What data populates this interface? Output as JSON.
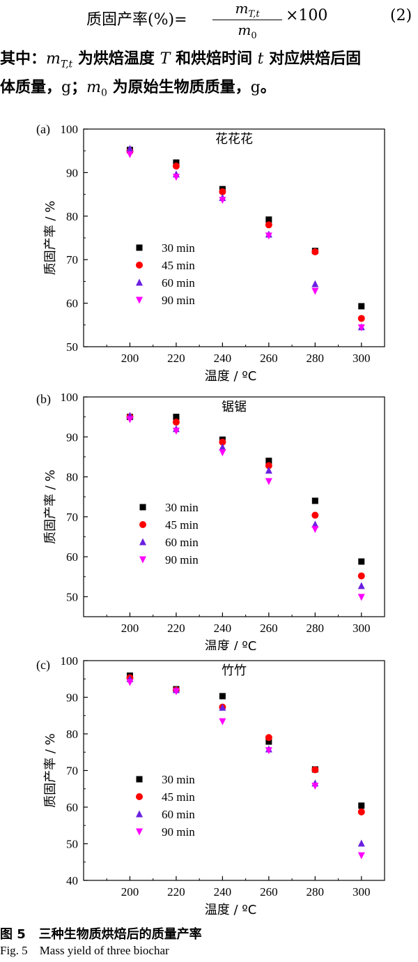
{
  "equation": {
    "lhs": "质固产率(%)=",
    "numerator": "m_T,t",
    "denominator": "m_0",
    "rhs": "×100",
    "number": "(2)"
  },
  "paragraph": {
    "line1_pre": "其中：",
    "line1_var": "m",
    "line1_sub": "T,t",
    "line1_mid1": "为烘焙温度",
    "line1_T": "T",
    "line1_mid2": "和烘焙时间",
    "line1_t": "t",
    "line1_post": "对应烘焙后固",
    "line2_pre": "体质量，",
    "line2_g1": "g",
    "line2_semi": "；",
    "line2_var": "m",
    "line2_sub": "0",
    "line2_mid": "为原始生物质质量，",
    "line2_g2": "g",
    "line2_end": "。"
  },
  "legend_labels": [
    "30 min",
    "45 min",
    "60 min",
    "90 min"
  ],
  "series_styles": [
    {
      "marker": "square",
      "color": "#000000"
    },
    {
      "marker": "circle",
      "color": "#ff0000"
    },
    {
      "marker": "triangle-up",
      "color": "#6b1fe0"
    },
    {
      "marker": "triangle-down",
      "color": "#ff00ff"
    }
  ],
  "chart_data": [
    {
      "type": "scatter",
      "panel_label": "(a)",
      "title": "花花花",
      "xlabel": "温度 / ºC",
      "ylabel": "质固产率 / %",
      "x": [
        200,
        220,
        240,
        260,
        280,
        300
      ],
      "xlim": [
        180,
        310
      ],
      "ylim": [
        50,
        100
      ],
      "xticks": [
        200,
        220,
        240,
        260,
        280,
        300
      ],
      "yticks": [
        50,
        60,
        70,
        80,
        90,
        100
      ],
      "series": [
        {
          "name": "30 min",
          "values": [
            95.2,
            92.3,
            86.2,
            79.2,
            72.0,
            59.3
          ]
        },
        {
          "name": "45 min",
          "values": [
            94.9,
            91.5,
            85.6,
            78.0,
            71.8,
            56.5
          ]
        },
        {
          "name": "60 min",
          "values": [
            95.5,
            89.6,
            84.2,
            75.8,
            64.4,
            54.5
          ]
        },
        {
          "name": "90 min",
          "values": [
            94.2,
            89.0,
            83.7,
            75.5,
            62.8,
            54.4
          ]
        }
      ]
    },
    {
      "type": "scatter",
      "panel_label": "(b)",
      "title": "锯锯",
      "xlabel": "温度 / ºC",
      "ylabel": "质固产率 / %",
      "x": [
        200,
        220,
        240,
        260,
        280,
        300
      ],
      "xlim": [
        180,
        310
      ],
      "ylim": [
        45,
        100
      ],
      "xticks": [
        200,
        220,
        240,
        260,
        280,
        300
      ],
      "yticks": [
        50,
        60,
        70,
        80,
        90,
        100
      ],
      "series": [
        {
          "name": "30 min",
          "values": [
            95.0,
            95.0,
            89.3,
            84.0,
            74.0,
            58.8
          ]
        },
        {
          "name": "45 min",
          "values": [
            95.0,
            93.7,
            88.7,
            82.8,
            70.4,
            55.2
          ]
        },
        {
          "name": "60 min",
          "values": [
            95.3,
            92.0,
            87.4,
            81.6,
            68.1,
            52.7
          ]
        },
        {
          "name": "90 min",
          "values": [
            94.4,
            91.5,
            86.1,
            78.9,
            66.9,
            49.9
          ]
        }
      ]
    },
    {
      "type": "scatter",
      "panel_label": "(c)",
      "title": "竹竹",
      "xlabel": "温度 / ºC",
      "ylabel": "质固产率 / %",
      "x": [
        200,
        220,
        240,
        260,
        280,
        300
      ],
      "xlim": [
        180,
        310
      ],
      "ylim": [
        40,
        100
      ],
      "xticks": [
        200,
        220,
        240,
        260,
        280,
        300
      ],
      "yticks": [
        40,
        50,
        60,
        70,
        80,
        90,
        100
      ],
      "series": [
        {
          "name": "30 min",
          "values": [
            95.9,
            92.2,
            90.3,
            77.9,
            70.3,
            60.4
          ]
        },
        {
          "name": "45 min",
          "values": [
            95.3,
            92.0,
            87.3,
            79.0,
            70.2,
            58.7
          ]
        },
        {
          "name": "60 min",
          "values": [
            95.0,
            92.0,
            87.2,
            75.8,
            66.5,
            50.1
          ]
        },
        {
          "name": "90 min",
          "values": [
            94.1,
            91.6,
            83.4,
            75.5,
            65.8,
            46.8
          ]
        }
      ]
    }
  ],
  "caption": {
    "cn_label": "图 5",
    "cn_text": "三种生物质烘焙后的质量产率",
    "en_label": "Fig. 5",
    "en_text": "Mass yield of three biochar"
  }
}
